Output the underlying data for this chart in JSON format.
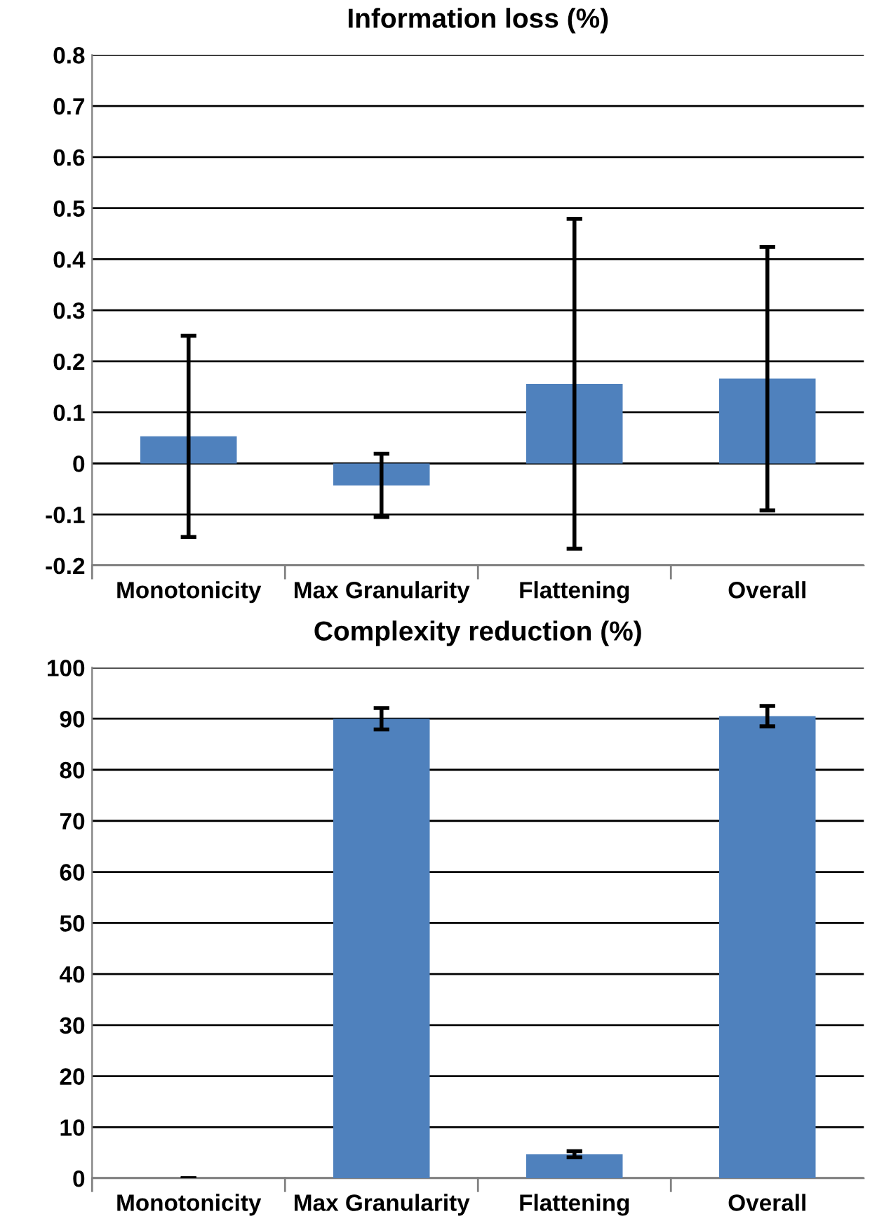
{
  "chart_data": [
    {
      "type": "bar",
      "title": "Information loss (%)",
      "categories": [
        "Monotonicity",
        "Max Granularity",
        "Flattening",
        "Overall"
      ],
      "series": [
        {
          "color": "#4f81bd",
          "values": [
            0.053,
            -0.043,
            0.156,
            0.166
          ],
          "errors": [
            0.197,
            0.062,
            0.323,
            0.258
          ]
        }
      ],
      "ylim": [
        -0.2,
        0.8
      ],
      "yticks": [
        -0.2,
        -0.1,
        0,
        0.1,
        0.2,
        0.3,
        0.4,
        0.5,
        0.6,
        0.7,
        0.8
      ],
      "grid": "y"
    },
    {
      "type": "bar",
      "title": "Complexity reduction (%)",
      "categories": [
        "Monotonicity",
        "Max Granularity",
        "Flattening",
        "Overall"
      ],
      "series": [
        {
          "color": "#4f81bd",
          "values": [
            0,
            90,
            4.7,
            90.5
          ],
          "errors": [
            0,
            2.1,
            0.6,
            2
          ]
        }
      ],
      "ylim": [
        0,
        100
      ],
      "yticks": [
        0,
        10,
        20,
        30,
        40,
        50,
        60,
        70,
        80,
        90,
        100
      ],
      "grid": "y"
    }
  ]
}
